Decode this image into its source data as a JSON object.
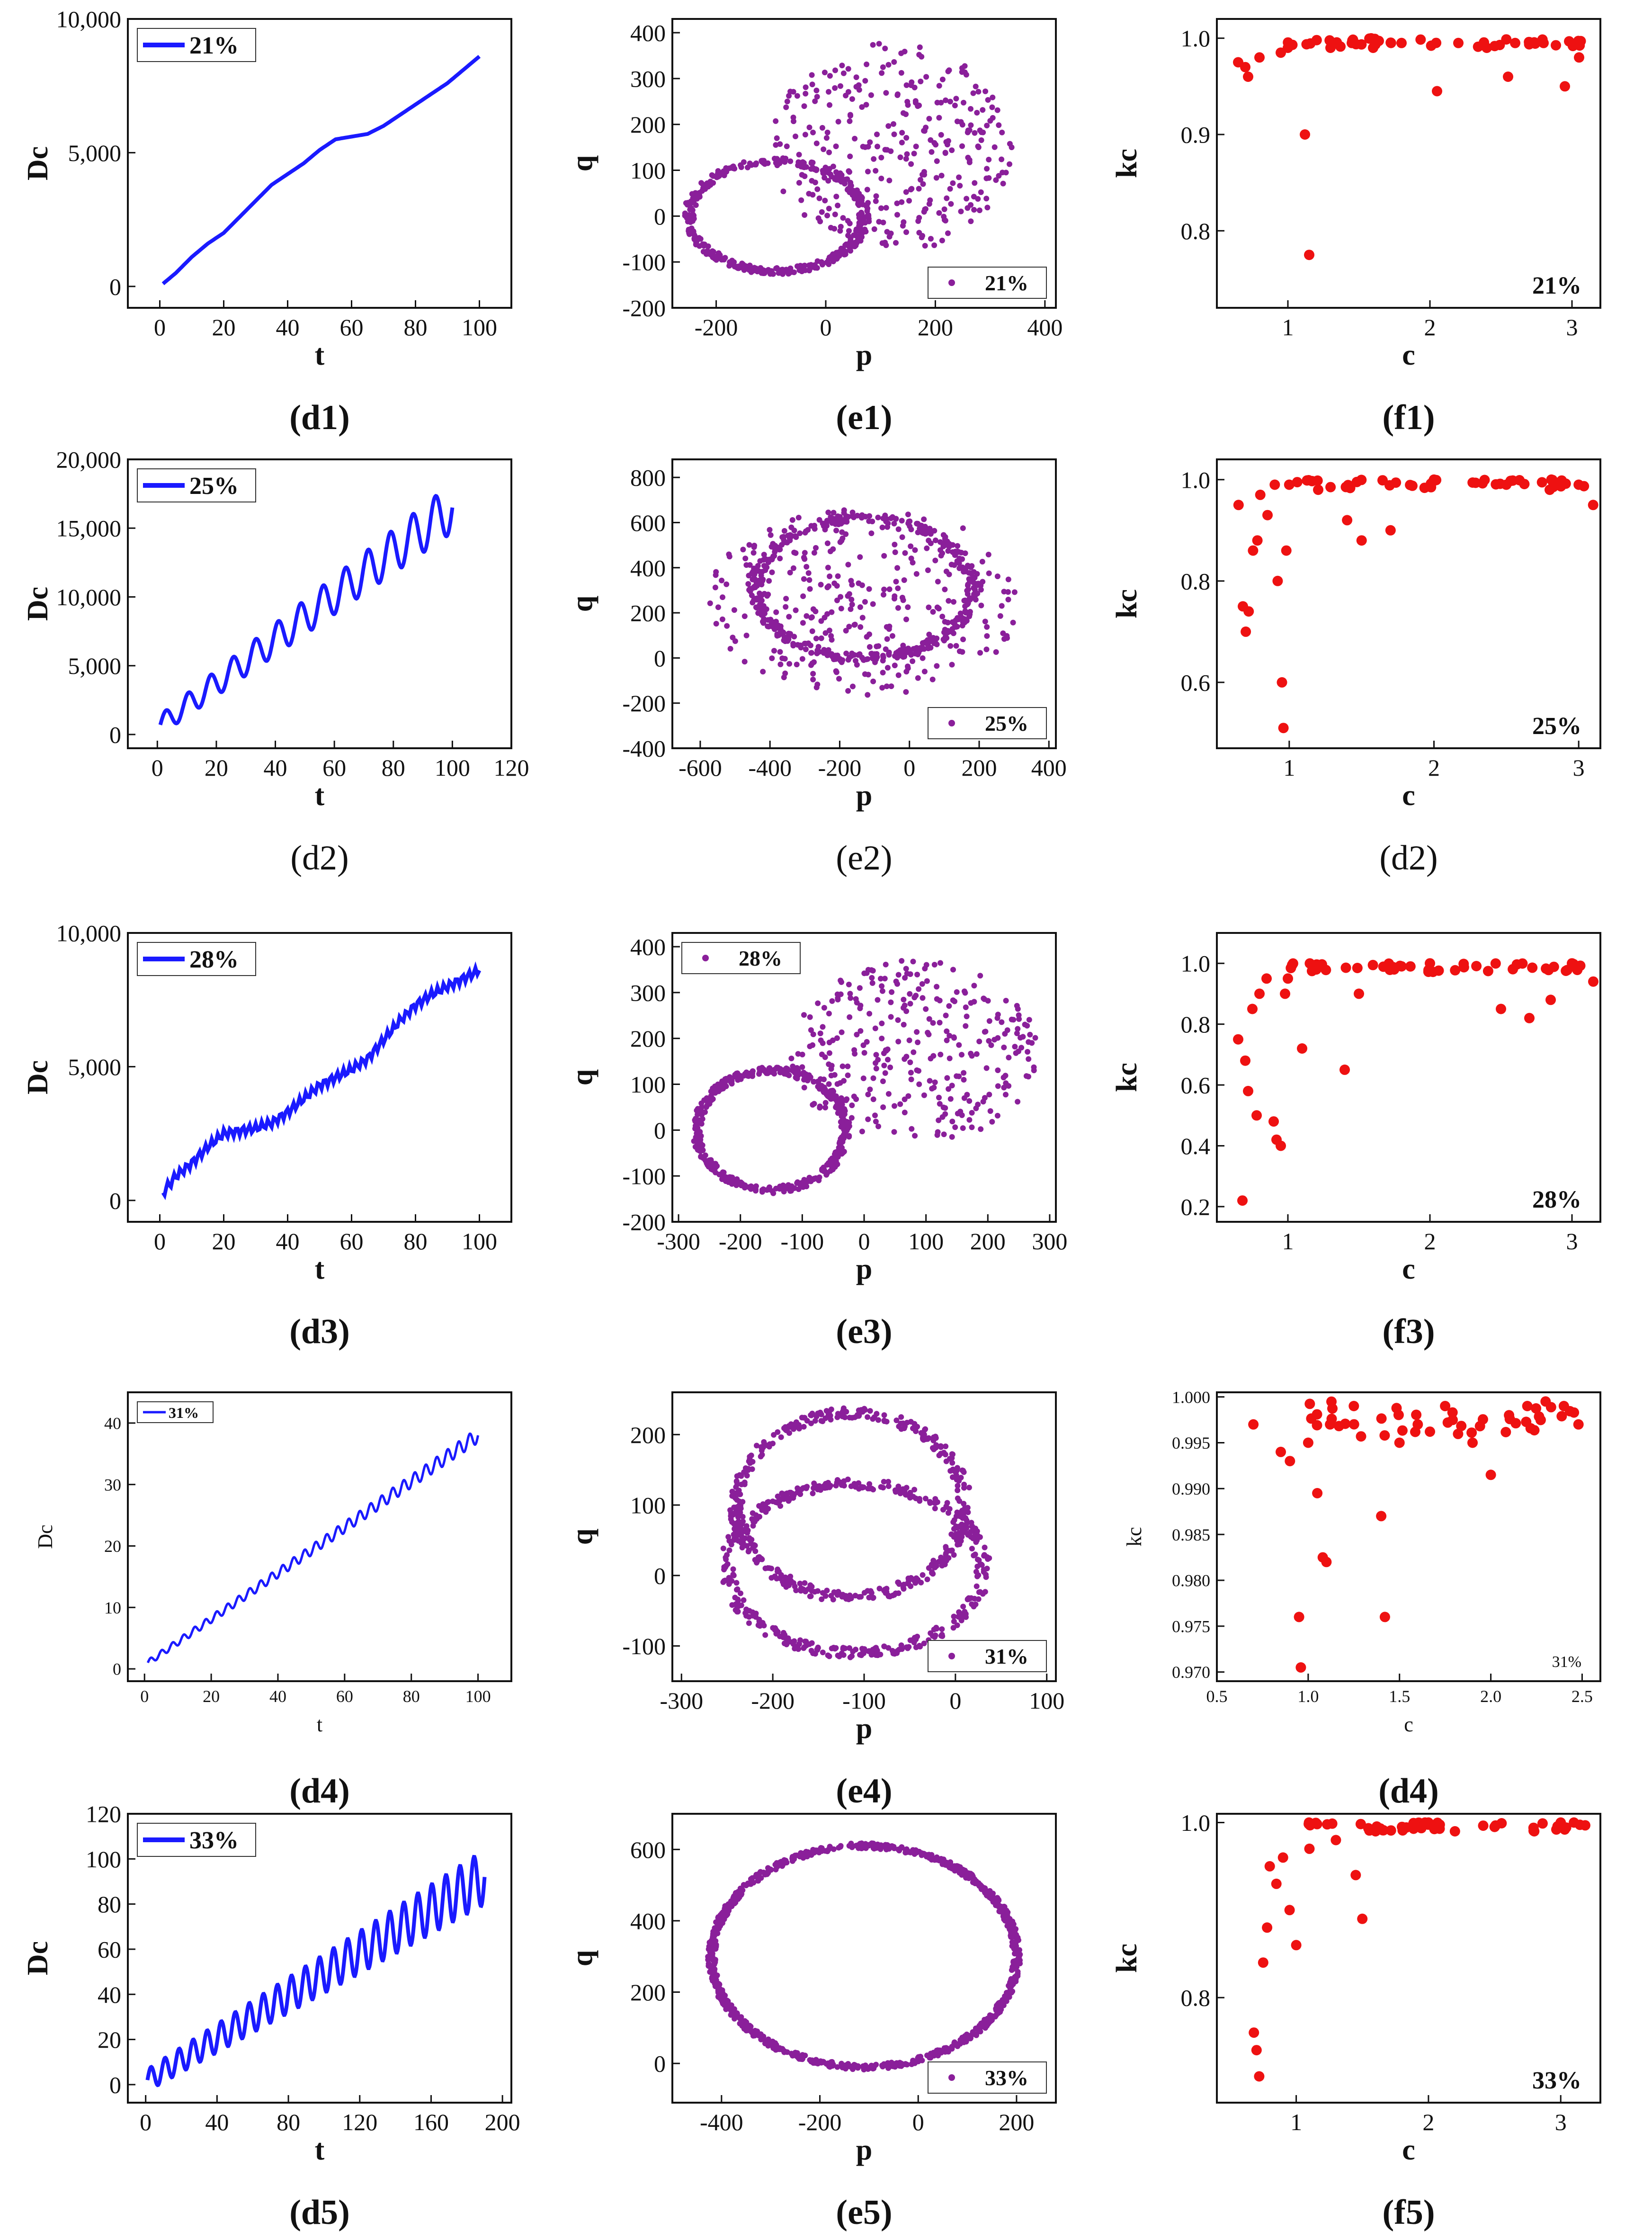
{
  "chart_data": [
    {
      "id": "d1",
      "type": "line",
      "xlabel": "t",
      "ylabel": "Dc",
      "xlim": [
        -10,
        110
      ],
      "ylim": [
        -800,
        10000
      ],
      "xticks": [
        0,
        20,
        40,
        60,
        80,
        100
      ],
      "yticks": [
        0,
        5000,
        10000
      ],
      "ytick_labels": [
        "0",
        "5,000",
        "10,000"
      ],
      "series": [
        {
          "name": "21%",
          "color": "#1a1aff",
          "x": [
            1,
            5,
            10,
            15,
            20,
            25,
            30,
            35,
            40,
            45,
            50,
            55,
            60,
            65,
            70,
            75,
            80,
            85,
            90,
            95,
            100
          ],
          "y": [
            100,
            500,
            1100,
            1600,
            2000,
            2600,
            3200,
            3800,
            4200,
            4600,
            5100,
            5500,
            5600,
            5700,
            6000,
            6400,
            6800,
            7200,
            7600,
            8100,
            8600
          ]
        }
      ],
      "caption": "(d1)"
    },
    {
      "id": "e1",
      "type": "scatter",
      "xlabel": "p",
      "ylabel": "q",
      "xlim": [
        -280,
        420
      ],
      "ylim": [
        -200,
        430
      ],
      "xticks": [
        -200,
        0,
        200,
        400
      ],
      "yticks": [
        -200,
        -100,
        0,
        100,
        200,
        300,
        400
      ],
      "ring": {
        "cx": -90,
        "cy": 0,
        "rx": 160,
        "ry": 120
      },
      "cloud": {
        "cx": 120,
        "cy": 150,
        "rx": 220,
        "ry": 230
      },
      "series": [
        {
          "name": "21%",
          "color": "#8a1f9a"
        }
      ],
      "caption": "(e1)"
    },
    {
      "id": "f1",
      "type": "scatter",
      "xlabel": "c",
      "ylabel": "kc",
      "xlim": [
        0.5,
        3.2
      ],
      "ylim": [
        0.72,
        1.02
      ],
      "xticks": [
        1,
        2,
        3
      ],
      "yticks": [
        0.8,
        0.9,
        1.0
      ],
      "ytick_labels": [
        "0.8",
        "0.9",
        "1.0"
      ],
      "series": [
        {
          "name": "21%",
          "color": "#ee1111",
          "x": [
            0.65,
            0.7,
            0.72,
            0.8,
            0.95,
            1.0,
            1.12,
            1.15,
            1.3,
            1.45,
            1.6,
            1.8,
            2.05,
            2.2,
            2.4,
            2.55,
            2.6,
            2.8,
            2.95,
            3.05
          ],
          "y": [
            0.975,
            0.97,
            0.96,
            0.98,
            0.985,
            0.99,
            0.9,
            0.775,
            0.99,
            0.995,
            0.99,
            0.995,
            0.945,
            0.995,
            0.99,
            0.96,
            0.995,
            0.995,
            0.95,
            0.98
          ]
        }
      ],
      "caption": "(f1)"
    },
    {
      "id": "d2",
      "type": "line",
      "xlabel": "t",
      "ylabel": "Dc",
      "xlim": [
        -10,
        120
      ],
      "ylim": [
        -1000,
        20000
      ],
      "xticks": [
        0,
        20,
        40,
        60,
        80,
        100,
        120
      ],
      "yticks": [
        0,
        5000,
        10000,
        15000,
        20000
      ],
      "ytick_labels": [
        "0",
        "5,000",
        "10,000",
        "15,000",
        "20,000"
      ],
      "series": [
        {
          "name": "25%",
          "color": "#1a1aff",
          "trend": [
            700,
            16500
          ],
          "amplitude": 1800,
          "periods": 13
        }
      ],
      "caption": "(d2)"
    },
    {
      "id": "e2",
      "type": "scatter",
      "xlabel": "p",
      "ylabel": "q",
      "xlim": [
        -680,
        420
      ],
      "ylim": [
        -400,
        880
      ],
      "xticks": [
        -600,
        -400,
        -200,
        0,
        200,
        400
      ],
      "yticks": [
        -400,
        -200,
        0,
        200,
        400,
        600,
        800
      ],
      "ring": {
        "cx": -130,
        "cy": 310,
        "rx": 310,
        "ry": 310
      },
      "cloud": {
        "cx": -130,
        "cy": 250,
        "rx": 450,
        "ry": 420
      },
      "series": [
        {
          "name": "25%",
          "color": "#8a1f9a"
        }
      ],
      "caption": "(e2)"
    },
    {
      "id": "f2",
      "type": "scatter",
      "xlabel": "c",
      "ylabel": "kc",
      "xlim": [
        0.5,
        3.15
      ],
      "ylim": [
        0.47,
        1.04
      ],
      "xticks": [
        1,
        2,
        3
      ],
      "yticks": [
        0.6,
        0.8,
        1.0
      ],
      "ytick_labels": [
        "0.6",
        "0.8",
        "1.0"
      ],
      "series": [
        {
          "name": "25%",
          "color": "#ee1111",
          "x": [
            0.65,
            0.68,
            0.7,
            0.72,
            0.75,
            0.78,
            0.8,
            0.85,
            0.9,
            0.92,
            0.95,
            0.96,
            0.98,
            1.0,
            1.2,
            1.4,
            1.5,
            1.7,
            2.0,
            2.5,
            2.8,
            3.0,
            3.1
          ],
          "y": [
            0.95,
            0.75,
            0.7,
            0.74,
            0.86,
            0.88,
            0.97,
            0.93,
            0.99,
            0.8,
            0.6,
            0.51,
            0.86,
            0.99,
            0.98,
            0.92,
            0.88,
            0.9,
            1.0,
            0.99,
            0.98,
            0.99,
            0.95
          ]
        }
      ],
      "caption": "(d2)"
    },
    {
      "id": "d3",
      "type": "line",
      "xlabel": "t",
      "ylabel": "Dc",
      "xlim": [
        -10,
        110
      ],
      "ylim": [
        -800,
        10000
      ],
      "xticks": [
        0,
        20,
        40,
        60,
        80,
        100
      ],
      "yticks": [
        0,
        5000,
        10000
      ],
      "ytick_labels": [
        "0",
        "5,000",
        "10,000"
      ],
      "series": [
        {
          "name": "28%",
          "color": "#1a1aff",
          "x": [
            1,
            5,
            10,
            15,
            20,
            25,
            30,
            35,
            40,
            45,
            50,
            55,
            60,
            65,
            70,
            75,
            80,
            85,
            90,
            95,
            100
          ],
          "y": [
            300,
            900,
            1400,
            2000,
            2500,
            2600,
            2700,
            2900,
            3300,
            3800,
            4300,
            4600,
            4900,
            5300,
            6000,
            6700,
            7300,
            7700,
            8000,
            8300,
            8600
          ]
        }
      ],
      "caption": "(d3)"
    },
    {
      "id": "e3",
      "type": "scatter",
      "xlabel": "p",
      "ylabel": "q",
      "xlim": [
        -310,
        310
      ],
      "ylim": [
        -200,
        430
      ],
      "xticks": [
        -300,
        -200,
        -100,
        0,
        100,
        200,
        300
      ],
      "yticks": [
        -200,
        -100,
        0,
        100,
        200,
        300,
        400
      ],
      "ring": {
        "cx": -150,
        "cy": 0,
        "rx": 120,
        "ry": 130
      },
      "cloud": {
        "cx": 80,
        "cy": 170,
        "rx": 200,
        "ry": 200
      },
      "series": [
        {
          "name": "28%",
          "color": "#8a1f9a"
        }
      ],
      "caption": "(e3)"
    },
    {
      "id": "f3",
      "type": "scatter",
      "xlabel": "c",
      "ylabel": "kc",
      "xlim": [
        0.5,
        3.2
      ],
      "ylim": [
        0.15,
        1.1
      ],
      "xticks": [
        1,
        2,
        3
      ],
      "yticks": [
        0.2,
        0.4,
        0.6,
        0.8,
        1.0
      ],
      "ytick_labels": [
        "0.2",
        "0.4",
        "0.6",
        "0.8",
        "1.0"
      ],
      "series": [
        {
          "name": "28%",
          "color": "#ee1111",
          "x": [
            0.65,
            0.68,
            0.7,
            0.72,
            0.75,
            0.78,
            0.8,
            0.85,
            0.9,
            0.92,
            0.95,
            0.98,
            1.0,
            1.1,
            1.2,
            1.4,
            1.5,
            1.8,
            2.0,
            2.5,
            2.7,
            2.85,
            3.0,
            3.15
          ],
          "y": [
            0.75,
            0.22,
            0.68,
            0.58,
            0.85,
            0.5,
            0.9,
            0.95,
            0.48,
            0.42,
            0.4,
            0.9,
            0.95,
            0.72,
            0.98,
            0.65,
            0.9,
            0.99,
            1.0,
            0.85,
            0.82,
            0.88,
            1.0,
            0.94
          ]
        }
      ],
      "caption": "(f3)"
    },
    {
      "id": "d4",
      "type": "line",
      "xlabel": "t",
      "ylabel": "Dc",
      "xlim": [
        -5,
        110
      ],
      "ylim": [
        -2,
        45
      ],
      "xticks": [
        0,
        20,
        40,
        60,
        80,
        100
      ],
      "yticks": [
        0,
        10,
        20,
        30,
        40
      ],
      "series": [
        {
          "name": "31%",
          "color": "#1a1aff",
          "trend": [
            1,
            38
          ],
          "amplitude": 1.2,
          "periods": 30
        }
      ],
      "caption": "(d4)"
    },
    {
      "id": "e4",
      "type": "scatter",
      "xlabel": "p",
      "ylabel": "q",
      "xlim": [
        -310,
        110
      ],
      "ylim": [
        -150,
        260
      ],
      "xticks": [
        -300,
        -200,
        -100,
        0,
        100
      ],
      "yticks": [
        -100,
        0,
        100,
        200
      ],
      "rings": [
        {
          "cx": -115,
          "cy": 100,
          "rx": 125,
          "ry": 130
        },
        {
          "cx": -110,
          "cy": 10,
          "rx": 140,
          "ry": 120
        }
      ],
      "series": [
        {
          "name": "31%",
          "color": "#8a1f9a"
        }
      ],
      "caption": "(e4)"
    },
    {
      "id": "f4",
      "type": "scatter",
      "xlabel": "c",
      "ylabel": "kc",
      "xlim": [
        0.5,
        2.6
      ],
      "ylim": [
        0.969,
        1.0005
      ],
      "xticks": [
        0.5,
        1.0,
        1.5,
        2.0,
        2.5
      ],
      "xtick_labels": [
        "0.5",
        "1.0",
        "1.5",
        "2.0",
        "2.5"
      ],
      "yticks": [
        0.97,
        0.975,
        0.98,
        0.985,
        0.99,
        0.995,
        1.0
      ],
      "ytick_labels": [
        "0.970",
        "0.975",
        "0.980",
        "0.985",
        "0.990",
        "0.995",
        "1.000"
      ],
      "series": [
        {
          "name": "31%",
          "color": "#ee1111",
          "x": [
            0.7,
            0.85,
            0.9,
            0.95,
            0.96,
            1.0,
            1.05,
            1.08,
            1.1,
            1.12,
            1.25,
            1.4,
            1.42,
            1.5,
            1.6,
            1.75,
            1.9,
            2.0,
            2.1,
            2.2,
            2.3,
            2.4,
            2.48
          ],
          "y": [
            0.997,
            0.994,
            0.993,
            0.976,
            0.9705,
            0.995,
            0.9895,
            0.9825,
            0.982,
            0.997,
            0.999,
            0.987,
            0.976,
            0.995,
            0.997,
            0.999,
            0.995,
            0.9915,
            0.998,
            0.999,
            0.9995,
            0.999,
            0.997
          ]
        }
      ],
      "caption": "(d4)"
    },
    {
      "id": "d5",
      "type": "line",
      "xlabel": "t",
      "ylabel": "Dc",
      "xlim": [
        -10,
        205
      ],
      "ylim": [
        -8,
        120
      ],
      "xticks": [
        0,
        40,
        80,
        120,
        160,
        200
      ],
      "yticks": [
        0,
        20,
        40,
        60,
        80,
        100,
        120
      ],
      "series": [
        {
          "name": "33%",
          "color": "#1a1aff",
          "trend": [
            2,
            92
          ],
          "amplitude": 12,
          "periods": 24
        }
      ],
      "caption": "(d5)"
    },
    {
      "id": "e5",
      "type": "scatter",
      "xlabel": "p",
      "ylabel": "q",
      "xlim": [
        -500,
        280
      ],
      "ylim": [
        -110,
        700
      ],
      "xticks": [
        -400,
        -200,
        0,
        200
      ],
      "yticks": [
        0,
        200,
        400,
        600
      ],
      "ring": {
        "cx": -110,
        "cy": 300,
        "rx": 310,
        "ry": 310
      },
      "series": [
        {
          "name": "33%",
          "color": "#8a1f9a"
        }
      ],
      "caption": "(e5)"
    },
    {
      "id": "f5",
      "type": "scatter",
      "xlabel": "c",
      "ylabel": "kc",
      "xlim": [
        0.4,
        3.3
      ],
      "ylim": [
        0.68,
        1.01
      ],
      "xticks": [
        1,
        2,
        3
      ],
      "yticks": [
        0.8,
        1.0
      ],
      "ytick_labels": [
        "0.8",
        "1.0"
      ],
      "series": [
        {
          "name": "33%",
          "color": "#ee1111",
          "x": [
            0.68,
            0.7,
            0.72,
            0.75,
            0.78,
            0.8,
            0.85,
            0.9,
            0.95,
            1.0,
            1.1,
            1.3,
            1.45,
            1.5,
            1.6,
            1.8,
            2.0,
            2.2,
            2.5,
            2.8,
            3.0,
            3.1
          ],
          "y": [
            0.76,
            0.74,
            0.71,
            0.84,
            0.88,
            0.95,
            0.93,
            0.96,
            0.9,
            0.86,
            0.97,
            0.98,
            0.94,
            0.89,
            0.99,
            0.995,
            1.0,
            0.99,
            0.995,
            0.99,
            1.0,
            1.0
          ]
        }
      ],
      "caption": "(f5)"
    }
  ]
}
